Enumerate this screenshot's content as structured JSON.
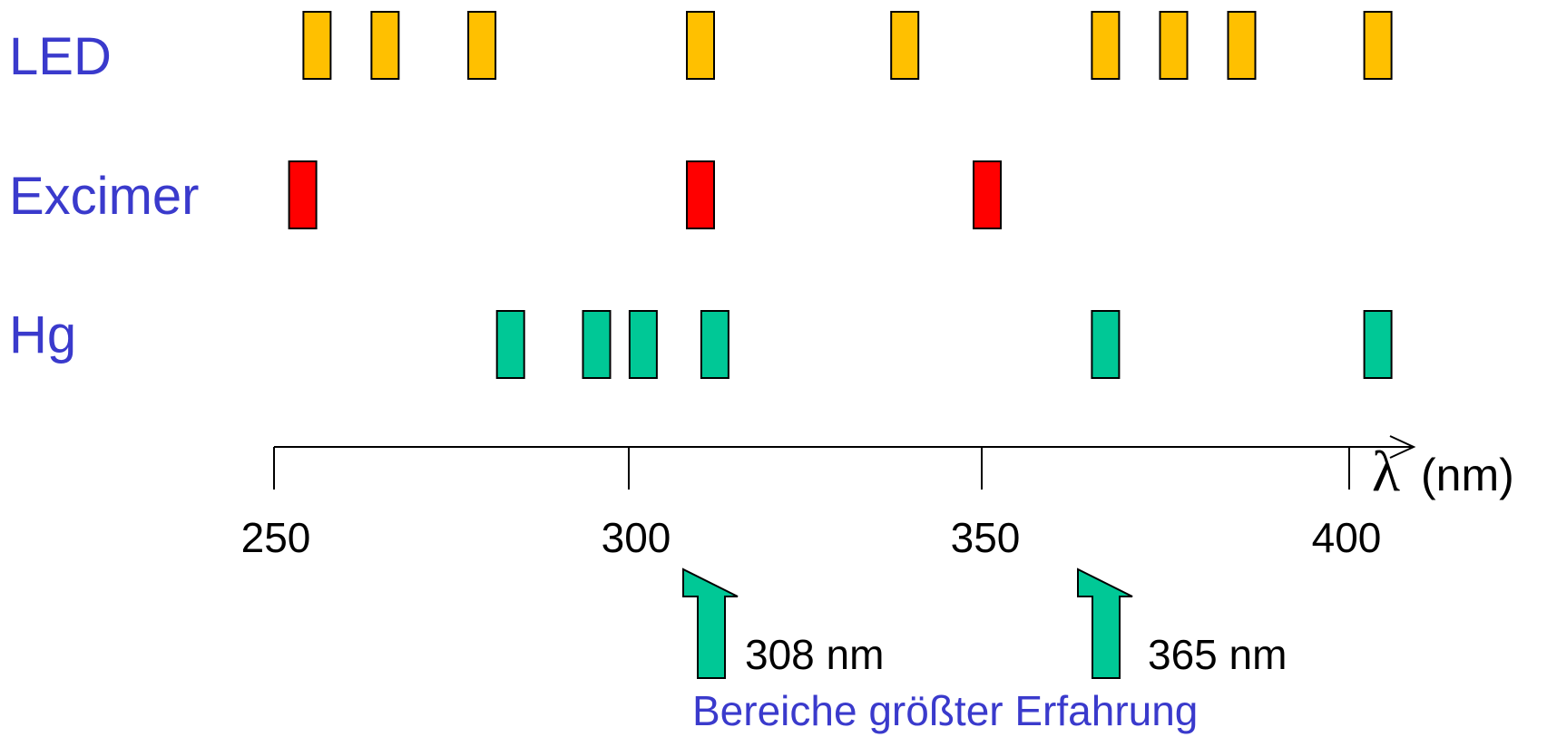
{
  "rows": [
    {
      "label": "LED",
      "color": "#FFC000",
      "lines": [
        256,
        265.5,
        279,
        309.5,
        338,
        366,
        375.5,
        385,
        404
      ]
    },
    {
      "label": "Excimer",
      "color": "#FF0000",
      "lines": [
        254,
        309.5,
        349.5
      ]
    },
    {
      "label": "Hg",
      "color": "#00C896",
      "lines": [
        283,
        295,
        301.5,
        311.5,
        366,
        404
      ]
    }
  ],
  "axis": {
    "symbol": "λ",
    "unit": "(nm)",
    "ticks": [
      "250",
      "300",
      "350",
      "400"
    ]
  },
  "markers": [
    {
      "value": 308,
      "label": "308 nm",
      "color": "#00C896"
    },
    {
      "value": 365,
      "label": "365 nm",
      "color": "#00C896"
    }
  ],
  "footnote": "Bereiche größter Erfahrung",
  "colors": {
    "label_text": "#3A3ACC",
    "axis": "#000000"
  }
}
